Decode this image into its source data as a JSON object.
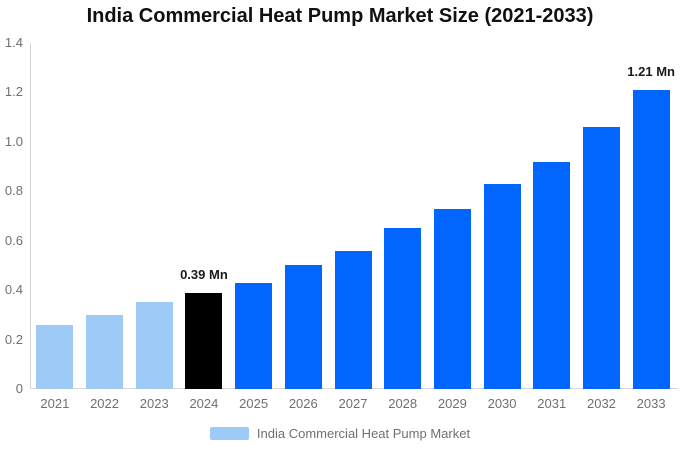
{
  "chart_data": {
    "type": "bar",
    "title": "India Commercial Heat Pump Market Size (2021-2033)",
    "categories": [
      "2021",
      "2022",
      "2023",
      "2024",
      "2025",
      "2026",
      "2027",
      "2028",
      "2029",
      "2030",
      "2031",
      "2032",
      "2033"
    ],
    "values": [
      0.26,
      0.3,
      0.35,
      0.39,
      0.43,
      0.5,
      0.56,
      0.65,
      0.73,
      0.83,
      0.92,
      1.06,
      1.21
    ],
    "unit": "Mn",
    "bar_colors": [
      "#9ecaf8",
      "#9ecaf8",
      "#9ecaf8",
      "#000000",
      "#0066ff",
      "#0066ff",
      "#0066ff",
      "#0066ff",
      "#0066ff",
      "#0066ff",
      "#0066ff",
      "#0066ff",
      "#0066ff"
    ],
    "xlabel": "",
    "ylabel": "",
    "ylim": [
      0,
      1.4
    ],
    "grid": false,
    "yticks": [
      {
        "value": 0,
        "label": "0"
      },
      {
        "value": 0.2,
        "label": "0.2"
      },
      {
        "value": 0.4,
        "label": "0.4"
      },
      {
        "value": 0.6,
        "label": "0.6"
      },
      {
        "value": 0.8,
        "label": "0.8"
      },
      {
        "value": 1.0,
        "label": "1.0"
      },
      {
        "value": 1.2,
        "label": "1.2"
      },
      {
        "value": 1.4,
        "label": "1.4"
      }
    ],
    "annotations": [
      {
        "index": 3,
        "category": "2024",
        "text": "0.39 Mn"
      },
      {
        "index": 12,
        "category": "2033",
        "text": "1.21 Mn"
      }
    ],
    "legend": {
      "position": "bottom-center",
      "items": [
        {
          "label": "India Commercial Heat Pump Market",
          "swatch_color": "#9ecaf8"
        }
      ]
    },
    "colors": {
      "historical_bars": "#9ecaf8",
      "base_year_bar": "#000000",
      "forecast_bars": "#0066ff",
      "axis_line": "#d6d6d6",
      "tick_text": "#707070",
      "title_text": "#111111",
      "annotation_text": "#1a1a1a",
      "background": "#ffffff"
    }
  }
}
